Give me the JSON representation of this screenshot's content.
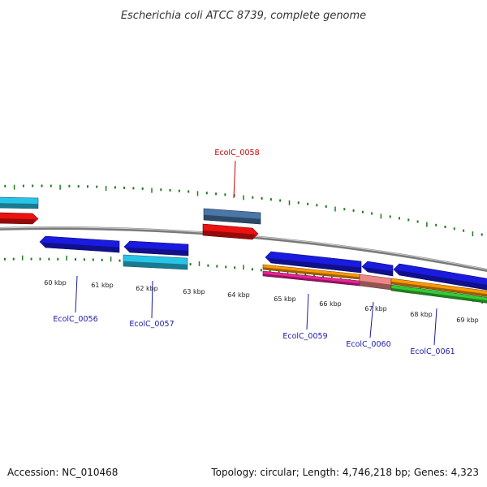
{
  "title": "Escherichia coli ATCC 8739, complete genome",
  "footer": {
    "accession": "Accession: NC_010468",
    "summary": "Topology: circular; Length: 4,746,218 bp; Genes: 4,323"
  },
  "colors": {
    "backbone": "#7a7a7a",
    "tick": "#1f7a1f",
    "forward_blue": "#1a1ae0",
    "cyan": "#28c4e8",
    "red": "#ee1111",
    "steel": "#4a76a8",
    "orange": "#ff9900",
    "magenta": "#ee2299",
    "green": "#33cc33",
    "pink": "#ee8888",
    "label_red": "#cc0000",
    "label_blue": "#1a1aa8"
  },
  "tick_labels": [
    "60 kbp",
    "61 kbp",
    "62 kbp",
    "63 kbp",
    "64 kbp",
    "65 kbp",
    "66 kbp",
    "67 kbp",
    "68 kbp",
    "69 kbp"
  ],
  "gene_labels": [
    {
      "id": "EcolC_0056",
      "color": "label_blue"
    },
    {
      "id": "EcolC_0057",
      "color": "label_blue"
    },
    {
      "id": "EcolC_0058",
      "color": "label_red"
    },
    {
      "id": "EcolC_0059",
      "color": "label_blue"
    },
    {
      "id": "EcolC_0060",
      "color": "label_blue"
    },
    {
      "id": "EcolC_0061",
      "color": "label_blue"
    }
  ]
}
